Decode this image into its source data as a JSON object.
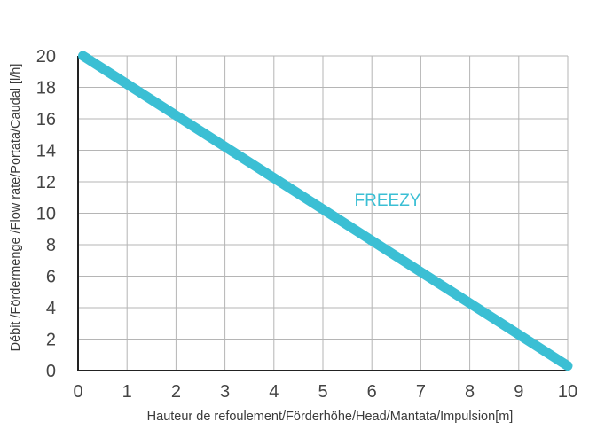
{
  "chart_data": {
    "type": "line",
    "title": "",
    "xlabel": "Hauteur de refoulement/Förderhöhe/Head/Mantata/Impulsion[m]",
    "ylabel": "Débit /Fördermenge /Flow rate/Portata/Caudal [l/h]",
    "xlim": [
      0,
      10
    ],
    "ylim": [
      0,
      20
    ],
    "x_ticks": [
      "0",
      "1",
      "2",
      "3",
      "4",
      "5",
      "6",
      "7",
      "8",
      "9",
      "10"
    ],
    "y_ticks": [
      "0",
      "2",
      "4",
      "6",
      "8",
      "10",
      "12",
      "14",
      "16",
      "18",
      "20"
    ],
    "grid": true,
    "series": [
      {
        "name": "FREEZY",
        "color": "#3bbfd4",
        "x": [
          0.1,
          10.0
        ],
        "y": [
          20.0,
          0.3
        ]
      }
    ],
    "colors": {
      "grid": "#b5b5b5",
      "axis": "#222222",
      "series": "#3bbfd4"
    }
  }
}
